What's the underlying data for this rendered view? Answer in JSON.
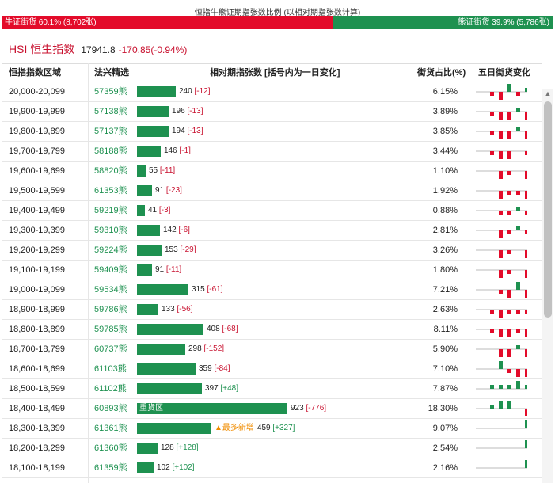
{
  "ratio": {
    "title": "恒指牛熊证期指张数比例 (以相对期指张数计算)",
    "bull_label": "牛证街货 60.1% (8,702张)",
    "bear_label": "熊证街货 39.9% (5,786张)",
    "bull_fraction": 0.601,
    "bull_color": "#e30b2a",
    "bear_color": "#1e9150"
  },
  "index": {
    "name": "HSI 恒生指数",
    "price": "17941.8",
    "change": "-170.85(-0.94%)"
  },
  "columns": {
    "range": "恒指指数区域",
    "code": "法兴精选",
    "volume": "相对期指张数 [括号内为一日变化]",
    "pct": "街货占比(%)",
    "trend": "五日街货变化"
  },
  "rows": [
    {
      "range": "20,000-20,099",
      "code": "57359熊",
      "value": 240,
      "change": "[-12]",
      "pct": "6.15%",
      "trend": [
        -1,
        -2,
        2,
        -1,
        1
      ]
    },
    {
      "range": "19,900-19,999",
      "code": "57138熊",
      "value": 196,
      "change": "[-13]",
      "pct": "3.89%",
      "trend": [
        -1,
        -2,
        -2,
        1,
        -2
      ]
    },
    {
      "range": "19,800-19,899",
      "code": "57137熊",
      "value": 194,
      "change": "[-13]",
      "pct": "3.85%",
      "trend": [
        -1,
        -2,
        -2,
        1,
        -2
      ]
    },
    {
      "range": "19,700-19,799",
      "code": "58188熊",
      "value": 146,
      "change": "[-1]",
      "pct": "3.44%",
      "trend": [
        -1,
        -2,
        -2,
        0,
        -1
      ]
    },
    {
      "range": "19,600-19,699",
      "code": "58820熊",
      "value": 55,
      "change": "[-11]",
      "pct": "1.10%",
      "trend": [
        0,
        -2,
        -1,
        0,
        -2
      ]
    },
    {
      "range": "19,500-19,599",
      "code": "61353熊",
      "value": 91,
      "change": "[-23]",
      "pct": "1.92%",
      "trend": [
        0,
        -2,
        -1,
        -1,
        -2
      ]
    },
    {
      "range": "19,400-19,499",
      "code": "59219熊",
      "value": 41,
      "change": "[-3]",
      "pct": "0.88%",
      "trend": [
        0,
        -1,
        -1,
        1,
        -1
      ]
    },
    {
      "range": "19,300-19,399",
      "code": "59310熊",
      "value": 142,
      "change": "[-6]",
      "pct": "2.81%",
      "trend": [
        0,
        -2,
        -1,
        1,
        -1
      ]
    },
    {
      "range": "19,200-19,299",
      "code": "59224熊",
      "value": 153,
      "change": "[-29]",
      "pct": "3.26%",
      "trend": [
        0,
        -2,
        -1,
        0,
        -2
      ]
    },
    {
      "range": "19,100-19,199",
      "code": "59409熊",
      "value": 91,
      "change": "[-11]",
      "pct": "1.80%",
      "trend": [
        0,
        -2,
        -1,
        0,
        -2
      ]
    },
    {
      "range": "19,000-19,099",
      "code": "59534熊",
      "value": 315,
      "change": "[-61]",
      "pct": "7.21%",
      "trend": [
        0,
        -1,
        -2,
        2,
        -2
      ]
    },
    {
      "range": "18,900-18,999",
      "code": "59786熊",
      "value": 133,
      "change": "[-56]",
      "pct": "2.63%",
      "trend": [
        -1,
        -2,
        -1,
        -1,
        -1
      ]
    },
    {
      "range": "18,800-18,899",
      "code": "59785熊",
      "value": 408,
      "change": "[-68]",
      "pct": "8.11%",
      "trend": [
        -1,
        -2,
        -2,
        -1,
        -2
      ]
    },
    {
      "range": "18,700-18,799",
      "code": "60737熊",
      "value": 298,
      "change": "[-152]",
      "pct": "5.90%",
      "trend": [
        0,
        -2,
        -2,
        1,
        -2
      ]
    },
    {
      "range": "18,600-18,699",
      "code": "61103熊",
      "value": 359,
      "change": "[-84]",
      "pct": "7.10%",
      "trend": [
        0,
        2,
        -1,
        -2,
        -2
      ]
    },
    {
      "range": "18,500-18,599",
      "code": "61102熊",
      "value": 397,
      "change": "[+48]",
      "pct": "7.87%",
      "trend": [
        1,
        1,
        1,
        2,
        1
      ]
    },
    {
      "range": "18,400-18,499",
      "code": "60893熊",
      "value": 923,
      "change": "[-776]",
      "pct": "18.30%",
      "trend": [
        1,
        2,
        2,
        0,
        -2
      ],
      "tag": "重货区"
    },
    {
      "range": "18,300-18,399",
      "code": "61361熊",
      "value": 459,
      "change": "[+327]",
      "pct": "9.07%",
      "trend": [
        0,
        0,
        0,
        0,
        2
      ],
      "hot": "▲最多新增"
    },
    {
      "range": "18,200-18,299",
      "code": "61360熊",
      "value": 128,
      "change": "[+128]",
      "pct": "2.54%",
      "trend": [
        0,
        0,
        0,
        0,
        2
      ]
    },
    {
      "range": "18,100-18,199",
      "code": "61359熊",
      "value": 102,
      "change": "[+102]",
      "pct": "2.16%",
      "trend": [
        0,
        0,
        0,
        0,
        2
      ]
    }
  ],
  "scale_max": 923
}
